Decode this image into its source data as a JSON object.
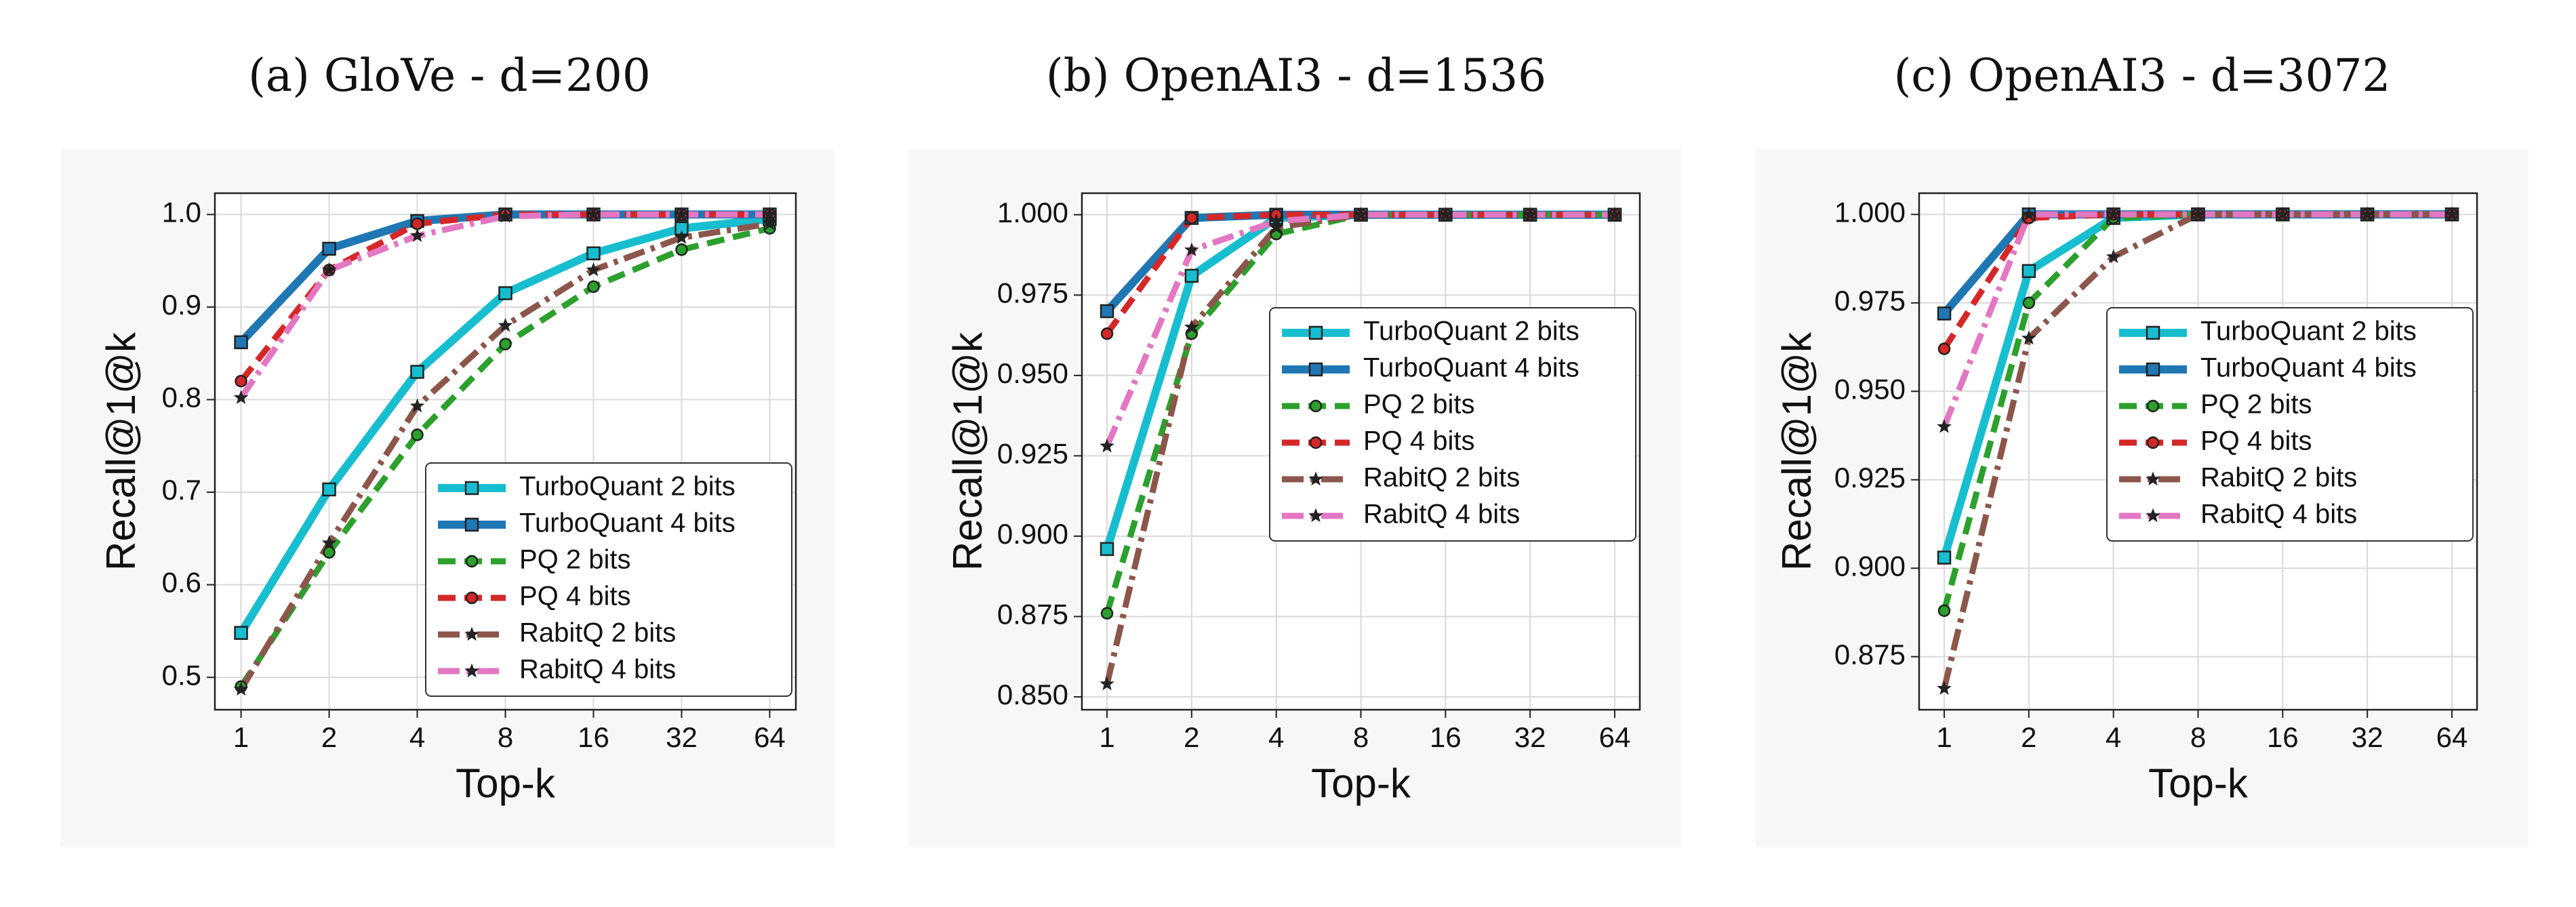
{
  "chart_data": [
    {
      "type": "line",
      "title": "(a) GloVe - d=200",
      "xlabel": "Top-k",
      "ylabel": "Recall@1@k",
      "categories": [
        "1",
        "2",
        "4",
        "8",
        "16",
        "32",
        "64"
      ],
      "ylim": [
        0.465,
        1.023
      ],
      "yticks": [
        0.5,
        0.6,
        0.7,
        0.8,
        0.9,
        {
          "value": 1,
          "label": "1.0"
        }
      ],
      "grid": true,
      "legend_loc": "lower right",
      "series": [
        {
          "name": "TurboQuant 2 bits",
          "color": "#17becf",
          "values": [
            0.548,
            0.703,
            0.83,
            0.915,
            0.958,
            0.985,
            0.995
          ]
        },
        {
          "name": "TurboQuant 4 bits",
          "color": "#1f77b4",
          "values": [
            0.862,
            0.963,
            0.993,
            1.0,
            1.0,
            1.0,
            1.0
          ]
        },
        {
          "name": "PQ 2 bits",
          "color": "#2ca02c",
          "values": [
            0.49,
            0.635,
            0.762,
            0.86,
            0.922,
            0.962,
            0.985
          ]
        },
        {
          "name": "PQ 4 bits",
          "color": "#d62728",
          "values": [
            0.82,
            0.94,
            0.99,
            1.0,
            1.0,
            1.0,
            1.0
          ]
        },
        {
          "name": "RabitQ 2 bits",
          "color": "#8c564b",
          "values": [
            0.487,
            0.645,
            0.793,
            0.88,
            0.94,
            0.975,
            0.99
          ]
        },
        {
          "name": "RabitQ 4 bits",
          "color": "#e377c2",
          "values": [
            0.802,
            0.94,
            0.977,
            0.998,
            1.0,
            1.0,
            1.0
          ]
        }
      ]
    },
    {
      "type": "line",
      "title": "(b) OpenAI3 - d=1536",
      "xlabel": "Top-k",
      "ylabel": "Recall@1@k",
      "categories": [
        "1",
        "2",
        "4",
        "8",
        "16",
        "32",
        "64"
      ],
      "ylim": [
        0.846,
        1.0067
      ],
      "yticks": [
        {
          "value": 0.85,
          "label": "0.850"
        },
        0.875,
        {
          "value": 0.9,
          "label": "0.900"
        },
        0.925,
        {
          "value": 0.95,
          "label": "0.950"
        },
        0.975,
        {
          "value": 1,
          "label": "1.000"
        }
      ],
      "grid": true,
      "legend_loc": "center right",
      "series": [
        {
          "name": "TurboQuant 2 bits",
          "color": "#17becf",
          "values": [
            0.896,
            0.981,
            0.999,
            1.0,
            1.0,
            1.0,
            1.0
          ]
        },
        {
          "name": "TurboQuant 4 bits",
          "color": "#1f77b4",
          "values": [
            0.97,
            0.999,
            1.0,
            1.0,
            1.0,
            1.0,
            1.0
          ]
        },
        {
          "name": "PQ 2 bits",
          "color": "#2ca02c",
          "values": [
            0.876,
            0.963,
            0.994,
            1.0,
            1.0,
            1.0,
            1.0
          ]
        },
        {
          "name": "PQ 4 bits",
          "color": "#d62728",
          "values": [
            0.963,
            0.999,
            1.0,
            1.0,
            1.0,
            1.0,
            1.0
          ]
        },
        {
          "name": "RabitQ 2 bits",
          "color": "#8c564b",
          "values": [
            0.854,
            0.965,
            0.996,
            1.0,
            1.0,
            1.0,
            1.0
          ]
        },
        {
          "name": "RabitQ 4 bits",
          "color": "#e377c2",
          "values": [
            0.928,
            0.989,
            0.998,
            1.0,
            1.0,
            1.0,
            1.0
          ]
        }
      ]
    },
    {
      "type": "line",
      "title": "(c) OpenAI3 - d=3072",
      "xlabel": "Top-k",
      "ylabel": "Recall@1@k",
      "categories": [
        "1",
        "2",
        "4",
        "8",
        "16",
        "32",
        "64"
      ],
      "ylim": [
        0.86,
        1.006
      ],
      "yticks": [
        0.875,
        {
          "value": 0.9,
          "label": "0.900"
        },
        0.925,
        {
          "value": 0.95,
          "label": "0.950"
        },
        0.975,
        {
          "value": 1,
          "label": "1.000"
        }
      ],
      "grid": true,
      "legend_loc": "center right",
      "series": [
        {
          "name": "TurboQuant 2 bits",
          "color": "#17becf",
          "values": [
            0.903,
            0.984,
            0.999,
            1.0,
            1.0,
            1.0,
            1.0
          ]
        },
        {
          "name": "TurboQuant 4 bits",
          "color": "#1f77b4",
          "values": [
            0.972,
            1.0,
            1.0,
            1.0,
            1.0,
            1.0,
            1.0
          ]
        },
        {
          "name": "PQ 2 bits",
          "color": "#2ca02c",
          "values": [
            0.888,
            0.975,
            0.999,
            1.0,
            1.0,
            1.0,
            1.0
          ]
        },
        {
          "name": "PQ 4 bits",
          "color": "#d62728",
          "values": [
            0.962,
            0.999,
            1.0,
            1.0,
            1.0,
            1.0,
            1.0
          ]
        },
        {
          "name": "RabitQ 2 bits",
          "color": "#8c564b",
          "values": [
            0.866,
            0.965,
            0.988,
            1.0,
            1.0,
            1.0,
            1.0
          ]
        },
        {
          "name": "RabitQ 4 bits",
          "color": "#e377c2",
          "values": [
            0.94,
            1.0,
            1.0,
            1.0,
            1.0,
            1.0,
            1.0
          ]
        }
      ]
    }
  ]
}
